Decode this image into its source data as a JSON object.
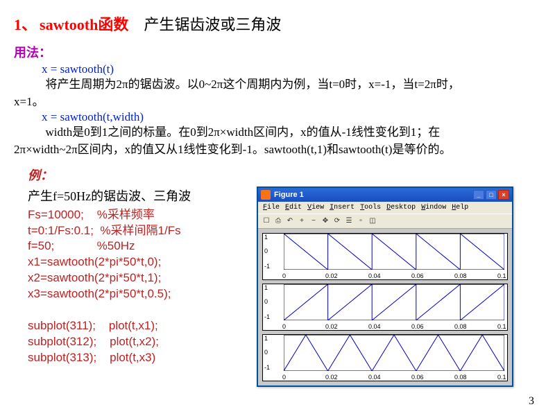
{
  "title": {
    "num": "1、",
    "fn": "sawtooth函数",
    "desc": "产生锯齿波或三角波"
  },
  "usage_label": "用法：",
  "syntax1": "x = sawtooth(t)",
  "desc1_a": "将产生周期为2π的锯齿波。以0~2π这个周期内为例，当t=0时，x=-1，当t=2π时，",
  "desc1_b": "x=1。",
  "syntax2": "x = sawtooth(t,width)",
  "desc2_a": "width是0到1之间的标量。在0到2π×width区间内，x的值从-1线性变化到1；在",
  "desc2_b": "2π×width~2π区间内，x的值又从1线性变化到-1。sawtooth(t,1)和sawtooth(t)是等价的。",
  "example_label": "例：",
  "code_head": "产生f=50Hz的锯齿波、三角波",
  "code_lines": [
    "Fs=10000;    %采样频率",
    "t=0:1/Fs:0.1;  %采样间隔1/Fs",
    "f=50;             %50Hz",
    "x1=sawtooth(2*pi*50*t,0);",
    "x2=sawtooth(2*pi*50*t,1);",
    "x3=sawtooth(2*pi*50*t,0.5);",
    "",
    "subplot(311);    plot(t,x1);",
    "subplot(312);    plot(t,x2);",
    "subplot(313);    plot(t,x3)"
  ],
  "figwin": {
    "title": "Figure 1",
    "menu": [
      "File",
      "Edit",
      "View",
      "Insert",
      "Tools",
      "Desktop",
      "Window",
      "Help"
    ],
    "tools": [
      "☐",
      "⎙",
      "↶",
      "+",
      "−",
      "✥",
      "⟳",
      "☰",
      "▫",
      "◫"
    ],
    "line_color": "#0000cc",
    "box_color": "#000000",
    "yticks": [
      "1",
      "0",
      "-1"
    ],
    "xticks": [
      "0",
      "0.02",
      "0.04",
      "0.06",
      "0.08",
      "0.1"
    ],
    "x_period": 0.02,
    "x_max": 0.1,
    "subplots": [
      {
        "type": "saw_down"
      },
      {
        "type": "saw_up"
      },
      {
        "type": "triangle"
      }
    ]
  },
  "pagenum": "3"
}
